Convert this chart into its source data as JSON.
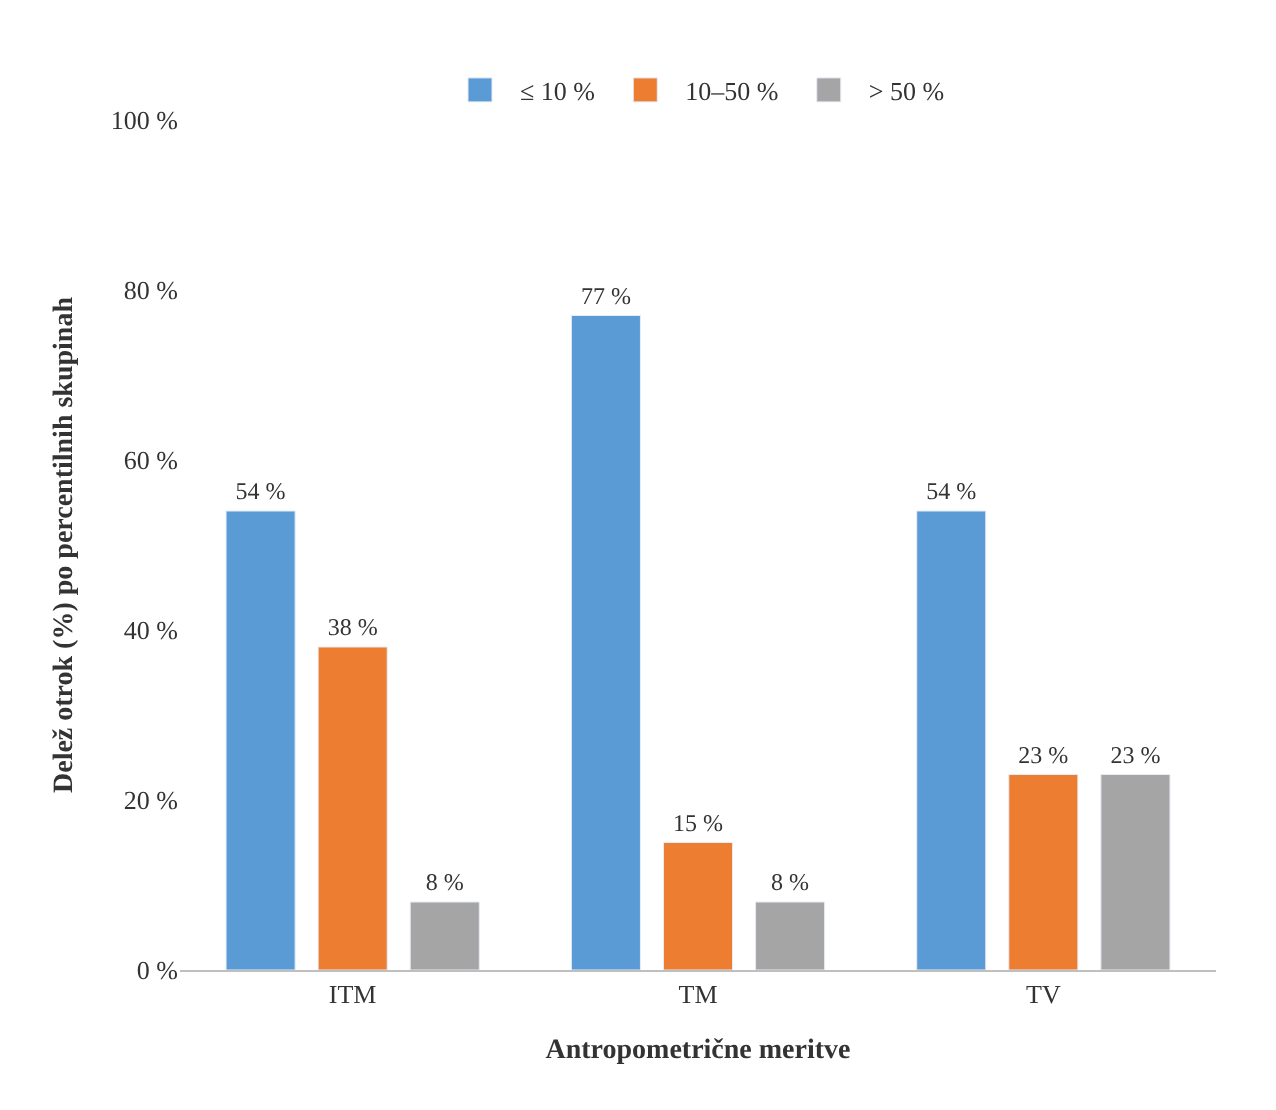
{
  "chart_data": {
    "type": "bar",
    "xlabel": "Antropometrične meritve",
    "ylabel": "Delež otrok (%) po percentilnih skupinah",
    "categories": [
      "ITM",
      "TM",
      "TV"
    ],
    "series": [
      {
        "name": "≤ 10 %",
        "color": "#5b9bd5",
        "values": [
          54,
          77,
          54
        ],
        "value_labels": [
          "54 %",
          "77 %",
          "54 %"
        ]
      },
      {
        "name": "10–50 %",
        "color": "#ed7d31",
        "values": [
          38,
          15,
          23
        ],
        "value_labels": [
          "38 %",
          "15 %",
          "23 %"
        ]
      },
      {
        "name": "> 50 %",
        "color": "#a5a5a5",
        "values": [
          8,
          8,
          23
        ],
        "value_labels": [
          "8 %",
          "8 %",
          "23 %"
        ]
      }
    ],
    "ylim": [
      0,
      100
    ],
    "yticks": [
      {
        "value": 0,
        "label": "0 %"
      },
      {
        "value": 20,
        "label": "20 %"
      },
      {
        "value": 40,
        "label": "40 %"
      },
      {
        "value": 60,
        "label": "60 %"
      },
      {
        "value": 80,
        "label": "80 %"
      },
      {
        "value": 100,
        "label": "100 %"
      }
    ],
    "legend": "top"
  }
}
